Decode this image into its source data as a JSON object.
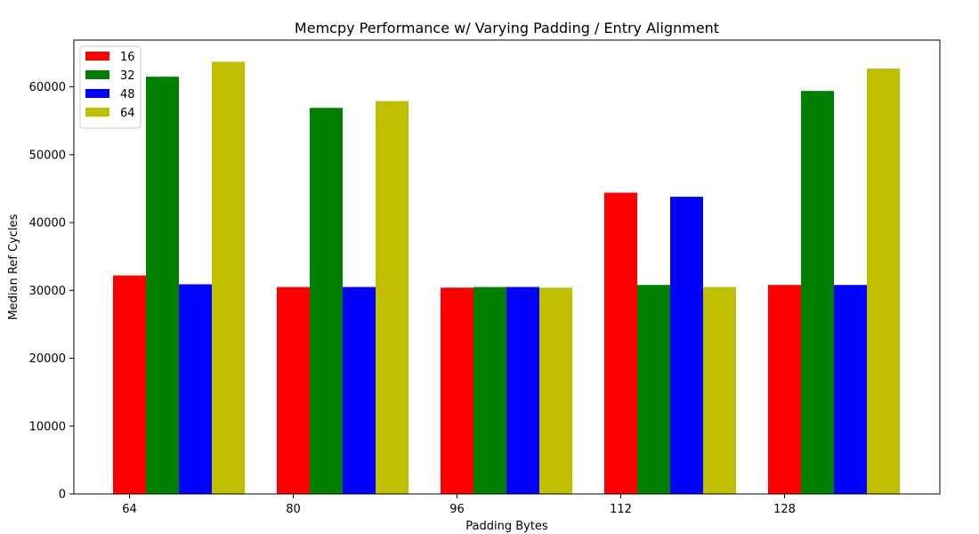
{
  "chart_data": {
    "type": "bar",
    "title": "Memcpy Performance w/ Varying Padding / Entry Alignment",
    "xlabel": "Padding Bytes",
    "ylabel": "Median Ref Cycles",
    "categories": [
      "64",
      "80",
      "96",
      "112",
      "128"
    ],
    "series": [
      {
        "name": "16",
        "color": "#ff0000",
        "values": [
          32200,
          30500,
          30400,
          44400,
          30800
        ]
      },
      {
        "name": "32",
        "color": "#008000",
        "values": [
          61500,
          56900,
          30500,
          30800,
          59400
        ]
      },
      {
        "name": "48",
        "color": "#0000ff",
        "values": [
          30900,
          30500,
          30500,
          43800,
          30800
        ]
      },
      {
        "name": "64",
        "color": "#bfbf00",
        "values": [
          63700,
          57900,
          30400,
          30500,
          62700
        ]
      }
    ],
    "ylim": [
      0,
      66900
    ],
    "yticks": [
      0,
      10000,
      20000,
      30000,
      40000,
      50000,
      60000
    ],
    "legend_position": "top-left",
    "grid": false
  }
}
